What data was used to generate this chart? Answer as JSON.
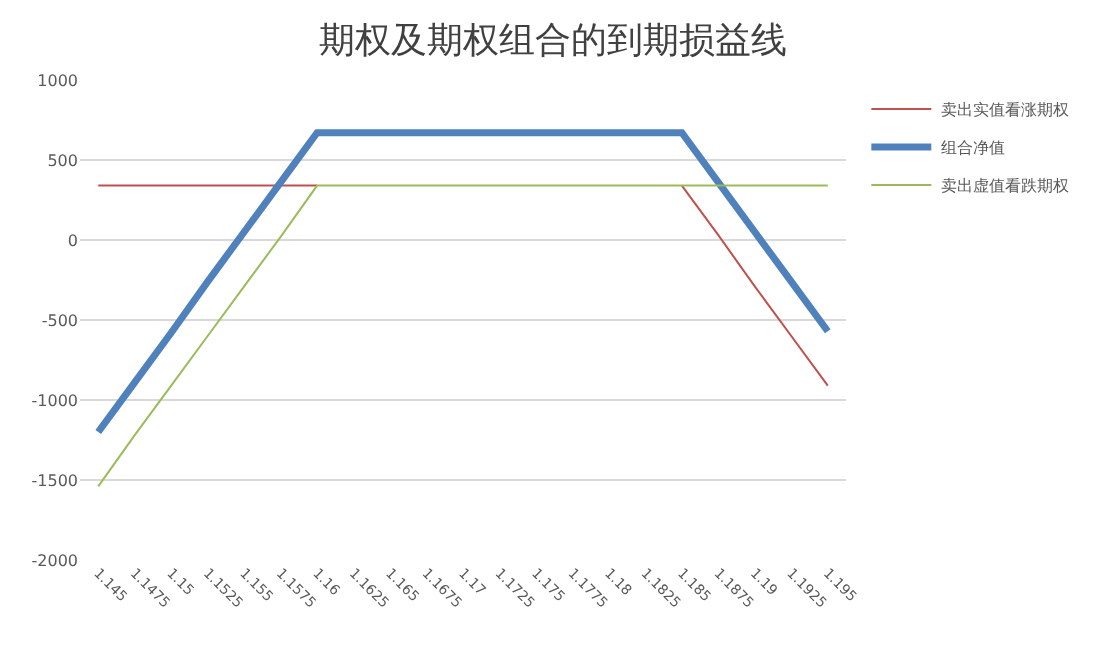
{
  "chart_data": {
    "type": "line",
    "title": "期权及期权组合的到期损益线",
    "categories": [
      "1.145",
      "1.1475",
      "1.15",
      "1.1525",
      "1.155",
      "1.1575",
      "1.16",
      "1.1625",
      "1.165",
      "1.1675",
      "1.17",
      "1.1725",
      "1.175",
      "1.1775",
      "1.18",
      "1.1825",
      "1.185",
      "1.1875",
      "1.19",
      "1.1925",
      "1.195"
    ],
    "series": [
      {
        "name": "卖出实值看涨期权",
        "color": "#c0504d",
        "values": [
          340,
          340,
          340,
          340,
          340,
          340,
          340,
          null,
          null,
          null,
          null,
          null,
          null,
          null,
          null,
          null,
          340,
          30,
          -290,
          -600,
          -910
        ]
      },
      {
        "name": "组合净值",
        "color": "#4f81bd",
        "values": [
          -1200,
          -890,
          -580,
          -260,
          50,
          360,
          670,
          670,
          670,
          670,
          670,
          670,
          670,
          670,
          670,
          670,
          670,
          360,
          50,
          -260,
          -570
        ]
      },
      {
        "name": "卖出虚值看跌期权",
        "color": "#9bbb59",
        "values": [
          -1540,
          -1220,
          -910,
          -600,
          -290,
          20,
          340,
          340,
          340,
          340,
          340,
          340,
          340,
          340,
          340,
          340,
          340,
          340,
          340,
          340,
          340
        ]
      }
    ],
    "ylim": [
      -2000,
      1000
    ],
    "yticks": [
      -2000,
      -1500,
      -1000,
      -500,
      0,
      500,
      1000
    ],
    "grid": "y",
    "legend": "right",
    "marker": "none",
    "line_style": "solid"
  }
}
